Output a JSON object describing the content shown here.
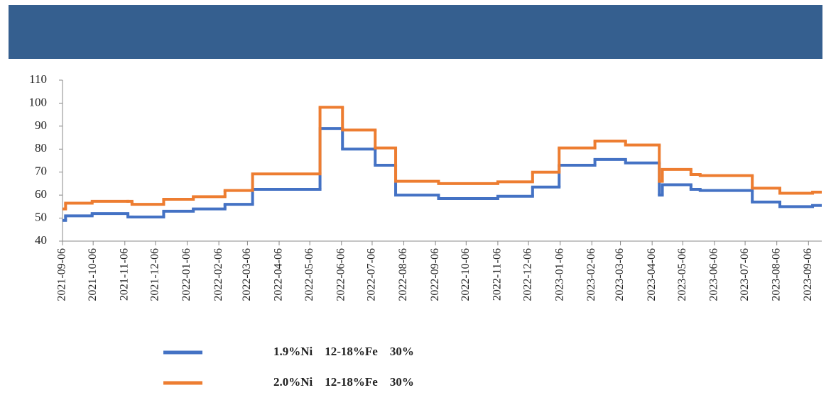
{
  "chart_data": {
    "type": "step-line",
    "x": [
      "2021-09-06",
      "2021-09-09",
      "2021-10-05",
      "2021-11-09",
      "2021-11-13",
      "2021-12-14",
      "2022-01-12",
      "2022-02-12",
      "2022-03-11",
      "2022-05-16",
      "2022-06-07",
      "2022-07-09",
      "2022-07-29",
      "2022-09-09",
      "2022-11-06",
      "2022-12-10",
      "2023-01-05",
      "2023-02-09",
      "2023-03-11",
      "2023-04-13",
      "2023-04-16",
      "2023-05-14",
      "2023-05-23",
      "2023-07-13",
      "2023-08-09",
      "2023-09-10"
    ],
    "series": [
      {
        "name": "1.9%Ni    12-18%Fe    30%",
        "color": "#4472c4",
        "values": [
          49,
          51,
          52,
          50.5,
          50.5,
          53,
          54,
          56,
          62.5,
          89,
          80,
          73,
          60,
          58.5,
          59.5,
          63.5,
          73,
          75.5,
          74,
          60,
          64.5,
          62.5,
          62,
          57,
          55,
          55.5
        ]
      },
      {
        "name": "2.0%Ni    12-18%Fe    30%",
        "color": "#ed7d31",
        "values": [
          54,
          56.5,
          57.3,
          57.3,
          56,
          58.2,
          59.3,
          62,
          69.2,
          98.2,
          88.3,
          80.5,
          66,
          65,
          65.8,
          70,
          80.5,
          83.5,
          81.8,
          66,
          71.2,
          69,
          68.5,
          63,
          60.8,
          61.3
        ]
      }
    ],
    "xlim": [
      "2021-09-06",
      "2023-09-19"
    ],
    "xticks": [
      "2021-09-06",
      "2021-10-06",
      "2021-11-06",
      "2021-12-06",
      "2022-01-06",
      "2022-02-06",
      "2022-03-06",
      "2022-04-06",
      "2022-05-06",
      "2022-06-06",
      "2022-07-06",
      "2022-08-06",
      "2022-09-06",
      "2022-10-06",
      "2022-11-06",
      "2022-12-06",
      "2023-01-06",
      "2023-02-06",
      "2023-03-06",
      "2023-04-06",
      "2023-05-06",
      "2023-06-06",
      "2023-07-06",
      "2023-08-06",
      "2023-09-06"
    ],
    "ylim": [
      40,
      110
    ],
    "yticks": [
      40,
      50,
      60,
      70,
      80,
      90,
      100,
      110
    ],
    "grid": false,
    "header_color": "#355f8f"
  }
}
